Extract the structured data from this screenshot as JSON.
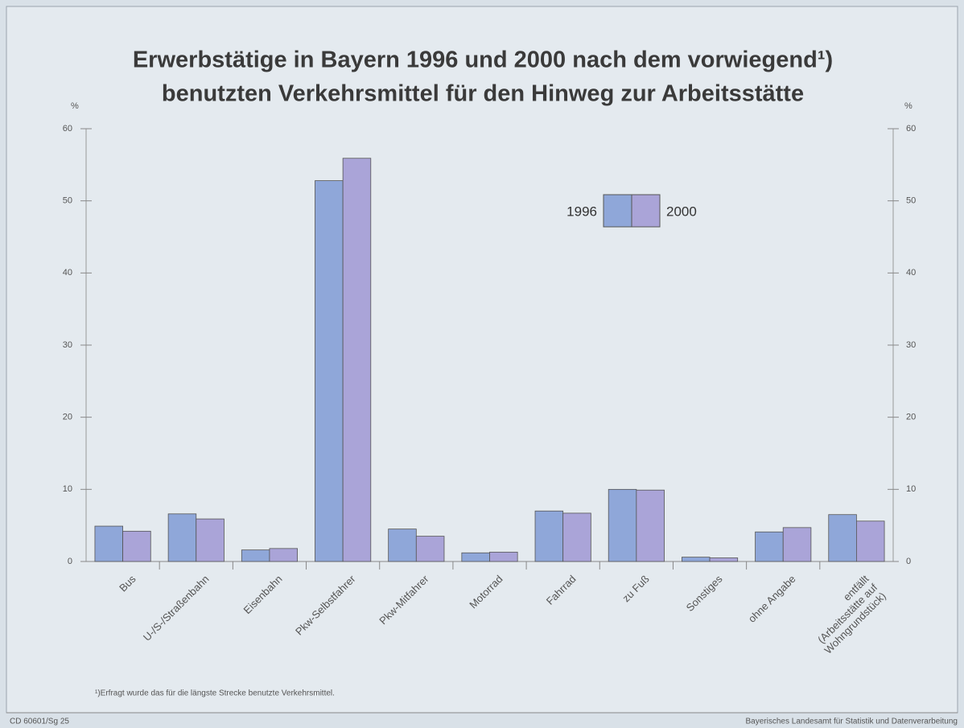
{
  "chart_data": {
    "type": "bar",
    "title": "Erwerbstätige in Bayern 1996 und 2000 nach dem vorwiegend¹)",
    "subtitle": "benutzten Verkehrsmittel für den Hinweg zur Arbeitsstätte",
    "y_label": "%",
    "y2_label": "%",
    "categories": [
      "Bus",
      "U-/S-/Straßenbahn",
      "Eisenbahn",
      "Pkw-Selbstfahrer",
      "Pkw-Mitfahrer",
      "Motorrad",
      "Fahrrad",
      "zu Fuß",
      "Sonstiges",
      "ohne Angabe",
      "entfällt\n(Arbeitsstätte auf\nWohngrundstück)"
    ],
    "series": [
      {
        "name": "1996",
        "color": "#8fa7d9",
        "values": [
          4.9,
          6.6,
          1.6,
          52.8,
          4.5,
          1.2,
          7.0,
          10.0,
          0.6,
          4.1,
          6.5
        ]
      },
      {
        "name": "2000",
        "color": "#aaa4d8",
        "values": [
          4.2,
          5.9,
          1.8,
          55.9,
          3.5,
          1.3,
          6.7,
          9.9,
          0.5,
          4.7,
          5.6
        ]
      }
    ],
    "ylim": [
      0,
      60
    ],
    "yticks": [
      0,
      10,
      20,
      30,
      40,
      50,
      60
    ],
    "y2lim": [
      0,
      60
    ],
    "y2ticks": [
      0,
      10,
      20,
      30,
      40,
      50,
      60
    ],
    "footnote": "¹)Erfragt wurde das für die längste Strecke benutzte Verkehrsmittel.",
    "code": "CD 60601/Sg 25",
    "source": "Bayerisches Landesamt für Statistik und Datenverarbeitung"
  }
}
